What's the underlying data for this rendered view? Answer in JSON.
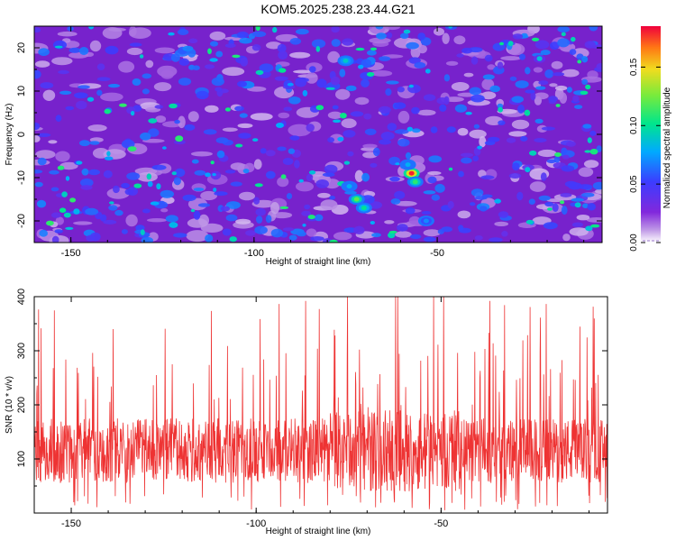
{
  "title": "KOM5.2025.238.23.44.G21",
  "colors": {
    "snr_line": "#ee3333",
    "spectro_bg": "#7722cc",
    "axis": "#000000"
  },
  "chart_data": [
    {
      "type": "heatmap",
      "name": "spectrogram",
      "xlabel": "Height of straight line (km)",
      "ylabel": "Frequency (Hz)",
      "xlim": [
        -160,
        -5
      ],
      "ylim": [
        -25,
        25
      ],
      "x_ticks": [
        -150,
        -100,
        -50
      ],
      "y_ticks": [
        -20,
        -10,
        0,
        10,
        20
      ],
      "colorbar": {
        "label": "Normalized spectral amplitude",
        "range": [
          0,
          0.185
        ],
        "ticks": [
          "0.00",
          "0.05",
          "0.10",
          "0.15"
        ],
        "tick_values": [
          0.0,
          0.05,
          0.1,
          0.15
        ]
      },
      "hotspots": [
        {
          "x": -57,
          "y": -9,
          "amplitude": 0.18
        },
        {
          "x": -72,
          "y": -15,
          "amplitude": 0.12
        },
        {
          "x": -56,
          "y": -11,
          "amplitude": 0.11
        },
        {
          "x": -74,
          "y": -12,
          "amplitude": 0.08
        },
        {
          "x": -75,
          "y": 17,
          "amplitude": 0.09
        },
        {
          "x": -58,
          "y": -7,
          "amplitude": 0.08
        },
        {
          "x": -70,
          "y": -17,
          "amplitude": 0.1
        },
        {
          "x": -53,
          "y": -20,
          "amplitude": 0.07
        }
      ]
    },
    {
      "type": "line",
      "name": "snr",
      "xlabel": "Height of straight line (km)",
      "ylabel": "SNR (10 * v/v)",
      "xlim": [
        -160,
        -5
      ],
      "ylim": [
        0,
        400
      ],
      "x_ticks": [
        -150,
        -100,
        -50
      ],
      "y_ticks": [
        100,
        200,
        300,
        400
      ],
      "series": [
        {
          "name": "SNR",
          "color": "#ee3333",
          "mean": 115,
          "spread": 60,
          "max": 400,
          "min": 5
        }
      ]
    }
  ]
}
